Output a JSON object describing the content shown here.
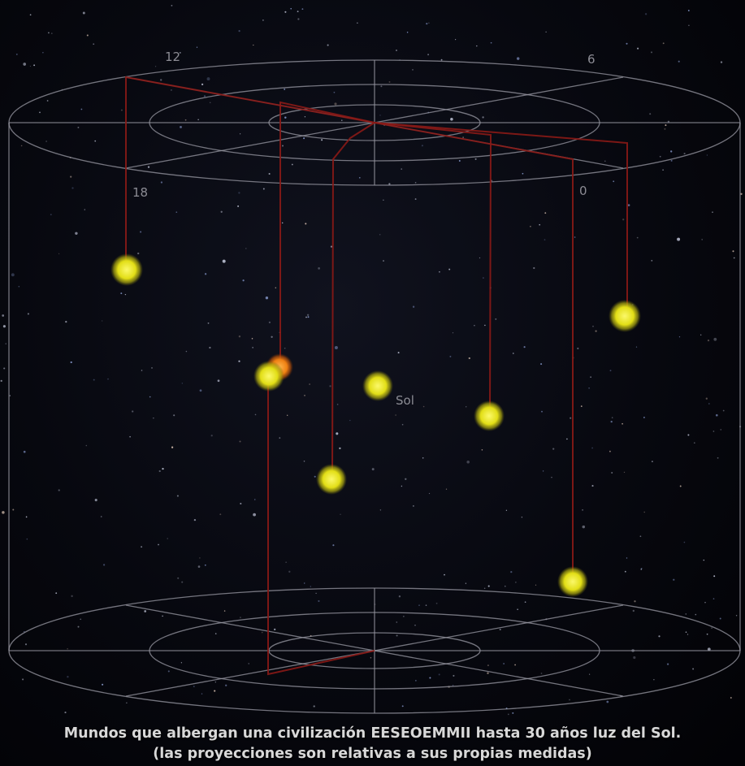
{
  "hour_labels": {
    "h12": "12",
    "h6": "6",
    "h18": "18",
    "h0": "0"
  },
  "sun_label": "Sol",
  "caption": {
    "line1": "Mundos que albergan una civilización EESEOEMMII hasta 30 años luz del Sol.",
    "line2": "(las proyecciones son relativas a sus propias medidas)"
  },
  "colors": {
    "star": "#e6e21a",
    "star_orange": "#f08a14",
    "projection": "#8a1a16",
    "grid": "#9a9aa4"
  }
}
